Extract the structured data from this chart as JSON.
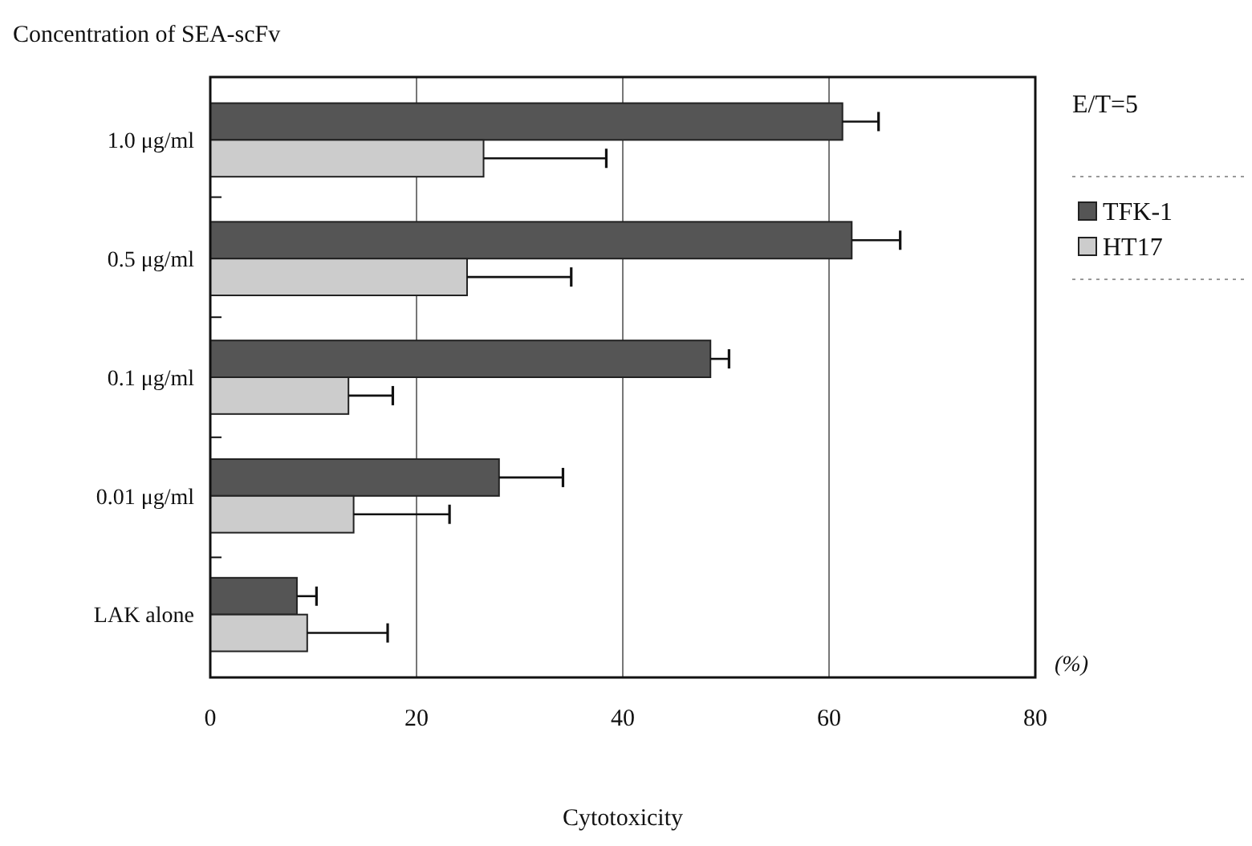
{
  "chart_data": {
    "type": "bar",
    "orientation": "horizontal",
    "ylabel": "Concentration of SEA-scFv",
    "xlabel": "Cytotoxicity",
    "legend_title": "E/T=5",
    "annotations": [
      "(%)"
    ],
    "categories": [
      "1.0 μg/ml",
      "0.5 μg/ml",
      "0.1 μg/ml",
      "0.01 μg/ml",
      "LAK alone"
    ],
    "series": [
      {
        "name": "TFK-1",
        "color": "#555555",
        "values": [
          61.3,
          62.2,
          48.5,
          28.0,
          8.4
        ],
        "errors": [
          [
            61.3,
            64.8
          ],
          [
            62.2,
            66.9
          ],
          [
            48.5,
            50.3
          ],
          [
            28.0,
            34.2
          ],
          [
            8.4,
            10.3
          ]
        ]
      },
      {
        "name": "HT17",
        "color": "#cccccc",
        "values": [
          26.5,
          24.9,
          13.4,
          13.9,
          9.4
        ],
        "errors": [
          [
            26.5,
            38.4
          ],
          [
            24.9,
            35.0
          ],
          [
            13.4,
            17.7
          ],
          [
            13.9,
            23.2
          ],
          [
            9.4,
            17.2
          ]
        ]
      }
    ],
    "xlim": [
      0,
      80
    ],
    "xticks": [
      0,
      20,
      40,
      60,
      80
    ],
    "grid": "x",
    "legend": "right"
  }
}
